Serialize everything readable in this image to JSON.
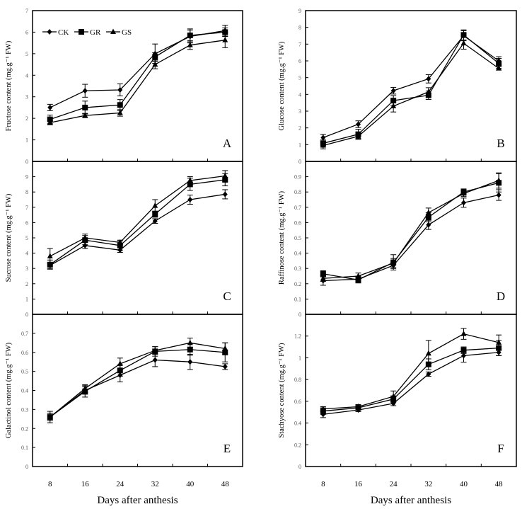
{
  "chart_data": [
    {
      "type": "line",
      "panel": "A",
      "ylabel": "Fructose content (mg.g⁻¹ FW)",
      "categories": [
        "8",
        "16",
        "24",
        "32",
        "40",
        "48"
      ],
      "ylim": [
        0,
        7
      ],
      "yticks": [
        0,
        1,
        2,
        3,
        4,
        5,
        6,
        7
      ],
      "legend": {
        "placement": "top-left",
        "entries": [
          "CK",
          "GR",
          "GS"
        ]
      },
      "series": [
        {
          "name": "CK",
          "marker": "diamond",
          "values": [
            2.5,
            3.28,
            3.32,
            5.0,
            5.8,
            6.07
          ],
          "error": [
            0.15,
            0.3,
            0.28,
            0.45,
            0.3,
            0.25
          ]
        },
        {
          "name": "GR",
          "marker": "square",
          "values": [
            1.95,
            2.5,
            2.62,
            4.85,
            5.85,
            6.0
          ],
          "error": [
            0.2,
            0.3,
            0.25,
            0.2,
            0.3,
            0.2
          ]
        },
        {
          "name": "GS",
          "marker": "triangle",
          "values": [
            1.8,
            2.13,
            2.25,
            4.5,
            5.4,
            5.63
          ],
          "error": [
            0.1,
            0.1,
            0.15,
            0.2,
            0.2,
            0.35
          ]
        }
      ]
    },
    {
      "type": "line",
      "panel": "B",
      "ylabel": "Glucose content (mg.g⁻¹ FW)",
      "categories": [
        "8",
        "16",
        "24",
        "32",
        "40",
        "48"
      ],
      "ylim": [
        0,
        9
      ],
      "yticks": [
        0,
        1,
        2,
        3,
        4,
        5,
        6,
        7,
        8,
        9
      ],
      "series": [
        {
          "name": "CK",
          "marker": "diamond",
          "values": [
            1.42,
            2.22,
            4.22,
            4.93,
            7.5,
            6.0
          ],
          "error": [
            0.2,
            0.2,
            0.2,
            0.25,
            0.3,
            0.25
          ]
        },
        {
          "name": "GR",
          "marker": "square",
          "values": [
            1.08,
            1.62,
            3.63,
            3.95,
            7.55,
            5.85
          ],
          "error": [
            0.2,
            0.3,
            0.3,
            0.25,
            0.3,
            0.3
          ]
        },
        {
          "name": "GS",
          "marker": "triangle",
          "values": [
            0.95,
            1.5,
            3.3,
            4.15,
            7.05,
            5.55
          ],
          "error": [
            0.2,
            0.15,
            0.35,
            0.25,
            0.35,
            0.1
          ]
        }
      ]
    },
    {
      "type": "line",
      "panel": "C",
      "ylabel": "Sucrose content (mg.g⁻¹ FW)",
      "categories": [
        "8",
        "16",
        "24",
        "32",
        "40",
        "48"
      ],
      "ylim": [
        0,
        10
      ],
      "yticks": [
        0,
        1,
        2,
        3,
        4,
        5,
        6,
        7,
        8,
        9
      ],
      "series": [
        {
          "name": "CK",
          "marker": "diamond",
          "values": [
            3.2,
            4.5,
            4.2,
            6.1,
            7.5,
            7.85
          ],
          "error": [
            0.2,
            0.2,
            0.15,
            0.15,
            0.3,
            0.3
          ]
        },
        {
          "name": "GR",
          "marker": "square",
          "values": [
            3.25,
            4.85,
            4.5,
            6.55,
            8.5,
            8.8
          ],
          "error": [
            0.3,
            0.3,
            0.3,
            0.2,
            0.4,
            0.4
          ]
        },
        {
          "name": "GS",
          "marker": "triangle",
          "values": [
            3.8,
            5.0,
            4.7,
            7.1,
            8.75,
            9.05
          ],
          "error": [
            0.5,
            0.25,
            0.15,
            0.4,
            0.25,
            0.35
          ]
        }
      ]
    },
    {
      "type": "line",
      "panel": "D",
      "ylabel": "Raffinose content (mg.g⁻¹ FW)",
      "categories": [
        "8",
        "16",
        "24",
        "32",
        "40",
        "48"
      ],
      "ylim": [
        0,
        1
      ],
      "yticks": [
        "0",
        "0.1",
        "0.2",
        "0.3",
        "0.4",
        "0.5",
        "0.6",
        "0.7",
        "0.8",
        "0.9"
      ],
      "series": [
        {
          "name": "CK",
          "marker": "diamond",
          "values": [
            0.22,
            0.23,
            0.32,
            0.585,
            0.73,
            0.78
          ],
          "error": [
            0.03,
            0.02,
            0.02,
            0.03,
            0.03,
            0.035
          ]
        },
        {
          "name": "GR",
          "marker": "square",
          "values": [
            0.265,
            0.225,
            0.34,
            0.635,
            0.8,
            0.86
          ],
          "error": [
            0.02,
            0.02,
            0.05,
            0.03,
            0.02,
            0.06
          ]
        },
        {
          "name": "GS",
          "marker": "triangle",
          "values": [
            0.235,
            0.25,
            0.335,
            0.665,
            0.79,
            0.875
          ],
          "error": [
            0.02,
            0.02,
            0.03,
            0.03,
            0.02,
            0.05
          ]
        }
      ]
    },
    {
      "type": "line",
      "panel": "E",
      "ylabel": "Galactinol content (mg.g⁻¹ FW)",
      "xlabel": "Days after anthesis",
      "categories": [
        "8",
        "16",
        "24",
        "32",
        "40",
        "48"
      ],
      "ylim": [
        0,
        0.8
      ],
      "yticks": [
        "0",
        "0.1",
        "0.2",
        "0.3",
        "0.4",
        "0.5",
        "0.6",
        "0.7"
      ],
      "series": [
        {
          "name": "CK",
          "marker": "diamond",
          "values": [
            0.26,
            0.4,
            0.48,
            0.56,
            0.55,
            0.525
          ],
          "error": [
            0.02,
            0.02,
            0.035,
            0.035,
            0.04,
            0.015
          ]
        },
        {
          "name": "GR",
          "marker": "square",
          "values": [
            0.26,
            0.395,
            0.505,
            0.605,
            0.615,
            0.6
          ],
          "error": [
            0.03,
            0.03,
            0.03,
            0.025,
            0.03,
            0.05
          ]
        },
        {
          "name": "GS",
          "marker": "triangle",
          "values": [
            0.26,
            0.41,
            0.54,
            0.61,
            0.65,
            0.62
          ],
          "error": [
            0.02,
            0.02,
            0.03,
            0.02,
            0.025,
            0.03
          ]
        }
      ]
    },
    {
      "type": "line",
      "panel": "F",
      "ylabel": "Stachyose content (mg.g⁻¹ FW)",
      "xlabel": "Days after anthesis",
      "categories": [
        "8",
        "16",
        "24",
        "32",
        "40",
        "48"
      ],
      "ylim": [
        0,
        1.4
      ],
      "yticks": [
        "0",
        "0.2",
        "0.4",
        "0.6",
        "0.8",
        "1",
        "1.2"
      ],
      "series": [
        {
          "name": "CK",
          "marker": "diamond",
          "values": [
            0.48,
            0.52,
            0.58,
            0.85,
            1.02,
            1.05
          ],
          "error": [
            0.03,
            0.015,
            0.02,
            0.02,
            0.06,
            0.03
          ]
        },
        {
          "name": "GR",
          "marker": "square",
          "values": [
            0.51,
            0.54,
            0.62,
            0.94,
            1.07,
            1.09
          ],
          "error": [
            0.03,
            0.02,
            0.03,
            0.05,
            0.03,
            0.07
          ]
        },
        {
          "name": "GS",
          "marker": "triangle",
          "values": [
            0.53,
            0.55,
            0.645,
            1.04,
            1.22,
            1.14
          ],
          "error": [
            0.02,
            0.02,
            0.05,
            0.12,
            0.05,
            0.07
          ]
        }
      ]
    }
  ],
  "colors": {
    "lines": "#000000",
    "tick_labels": "#555555"
  },
  "grid": false
}
